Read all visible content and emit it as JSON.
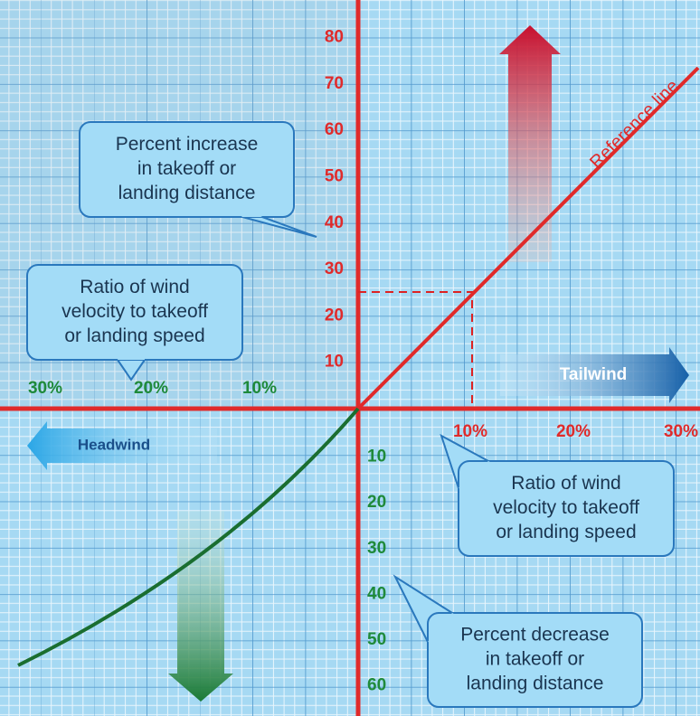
{
  "vertical_axis_up": {
    "ticks": [
      "10",
      "20",
      "30",
      "40",
      "50",
      "60",
      "70",
      "80"
    ]
  },
  "vertical_axis_down": {
    "ticks": [
      "10",
      "20",
      "30",
      "40",
      "50",
      "60"
    ]
  },
  "horizontal_axis_left": {
    "ticks": [
      "30%",
      "20%",
      "10%"
    ]
  },
  "horizontal_axis_right": {
    "ticks": [
      "10%",
      "20%",
      "30%"
    ]
  },
  "reference_line": {
    "label": "Reference line"
  },
  "arrows": {
    "tailwind": "Tailwind",
    "headwind": "Headwind"
  },
  "callouts": [
    {
      "lines": [
        "Percent increase",
        "in takeoff or",
        "landing distance"
      ]
    },
    {
      "lines": [
        "Ratio of wind",
        "velocity to takeoff",
        "or landing speed"
      ]
    },
    {
      "lines": [
        "Ratio of wind",
        "velocity to takeoff",
        "or landing speed"
      ]
    },
    {
      "lines": [
        "Percent decrease",
        "in takeoff or",
        "landing distance"
      ]
    }
  ]
}
